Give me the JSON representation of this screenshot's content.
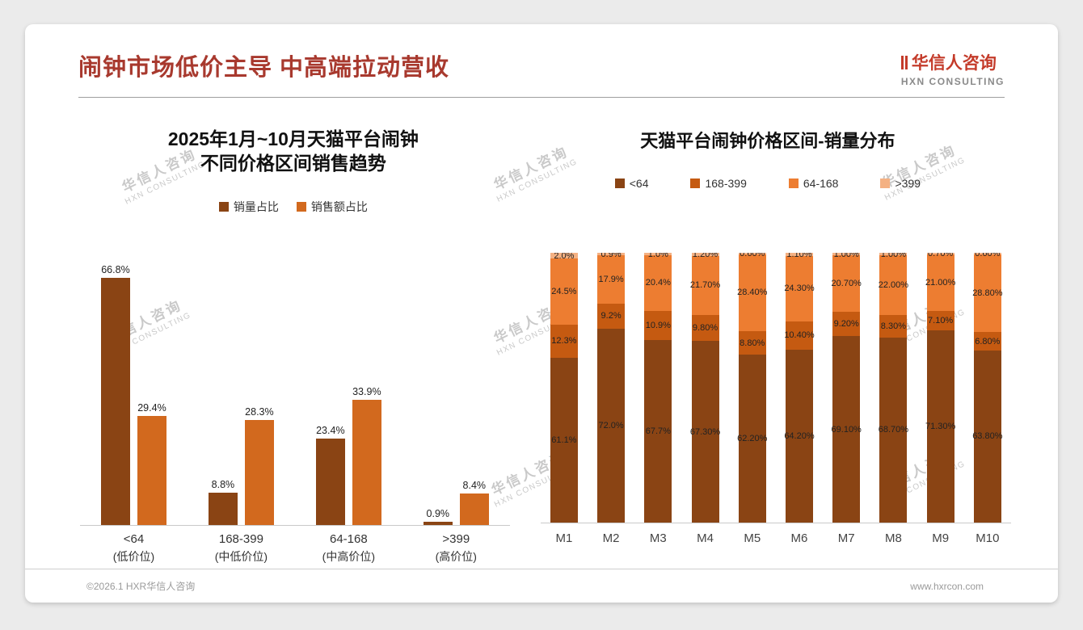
{
  "page": {
    "title": "闹钟市场低价主导 中高端拉动营收",
    "logo": {
      "name": "华信人咨询",
      "subtitle": "HXN CONSULTING"
    },
    "footer": {
      "left": "©2026.1 HXR华信人咨询",
      "right": "www.hxrcon.com"
    },
    "watermark": {
      "line1": "华信人咨询",
      "line2": "HXN CONSULTING"
    }
  },
  "colors": {
    "title_red": "#a8392e",
    "dark_brown": "#8a4414",
    "rust": "#c55a11",
    "orange": "#ed7d31",
    "light_orange": "#f4b183"
  },
  "chart_data": [
    {
      "type": "bar",
      "title": "2025年1月~10月天猫平台闹钟 不同价格区间销售趋势",
      "title_lines": [
        "2025年1月~10月天猫平台闹钟",
        "不同价格区间销售趋势"
      ],
      "xlabel": "",
      "ylabel": "",
      "ylim": [
        0,
        70
      ],
      "unit": "%",
      "legend_position": "top",
      "categories": [
        {
          "line1": "<64",
          "line2": "(低价位)"
        },
        {
          "line1": "168-399",
          "line2": "(中低价位)"
        },
        {
          "line1": "64-168",
          "line2": "(中高价位)"
        },
        {
          "line1": ">399",
          "line2": "(高价位)"
        }
      ],
      "series": [
        {
          "name": "销量占比",
          "color": "#8a4414",
          "values": [
            66.8,
            8.8,
            23.4,
            0.9
          ],
          "labels": [
            "66.8%",
            "8.8%",
            "23.4%",
            "0.9%"
          ]
        },
        {
          "name": "销售额占比",
          "color": "#d2691e",
          "values": [
            29.4,
            28.3,
            33.9,
            8.4
          ],
          "labels": [
            "29.4%",
            "28.3%",
            "33.9%",
            "8.4%"
          ]
        }
      ]
    },
    {
      "type": "bar-stacked",
      "title": "天猫平台闹钟价格区间-销量分布",
      "xlabel": "",
      "ylabel": "",
      "ylim": [
        0,
        100
      ],
      "unit": "%",
      "legend_position": "top",
      "categories": [
        "M1",
        "M2",
        "M3",
        "M4",
        "M5",
        "M6",
        "M7",
        "M8",
        "M9",
        "M10"
      ],
      "series": [
        {
          "name": "<64",
          "color": "#8a4414",
          "values": [
            61.1,
            72.0,
            67.7,
            67.3,
            62.2,
            64.2,
            69.1,
            68.7,
            71.3,
            63.8
          ],
          "labels": [
            "61.1%",
            "72.0%",
            "67.7%",
            "67.30%",
            "62.20%",
            "64.20%",
            "69.10%",
            "68.70%",
            "71.30%",
            "63.80%"
          ]
        },
        {
          "name": "168-399",
          "color": "#c55a11",
          "values": [
            12.3,
            9.2,
            10.9,
            9.8,
            8.8,
            10.4,
            9.2,
            8.3,
            7.1,
            6.8
          ],
          "labels": [
            "12.3%",
            "9.2%",
            "10.9%",
            "9.80%",
            "8.80%",
            "10.40%",
            "9.20%",
            "8.30%",
            "7.10%",
            "6.80%"
          ]
        },
        {
          "name": "64-168",
          "color": "#ed7d31",
          "values": [
            24.5,
            17.9,
            20.4,
            21.7,
            28.4,
            24.3,
            20.7,
            22.0,
            21.0,
            28.8
          ],
          "labels": [
            "24.5%",
            "17.9%",
            "20.4%",
            "21.70%",
            "28.40%",
            "24.30%",
            "20.70%",
            "22.00%",
            "21.00%",
            "28.80%"
          ]
        },
        {
          "name": ">399",
          "color": "#f4b183",
          "values": [
            2.0,
            0.9,
            1.0,
            1.2,
            0.6,
            1.1,
            1.0,
            1.0,
            0.7,
            0.6
          ],
          "labels": [
            "2.0%",
            "0.9%",
            "1.0%",
            "1.20%",
            "0.60%",
            "1.10%",
            "1.00%",
            "1.00%",
            "0.70%",
            "0.60%"
          ]
        }
      ]
    }
  ]
}
